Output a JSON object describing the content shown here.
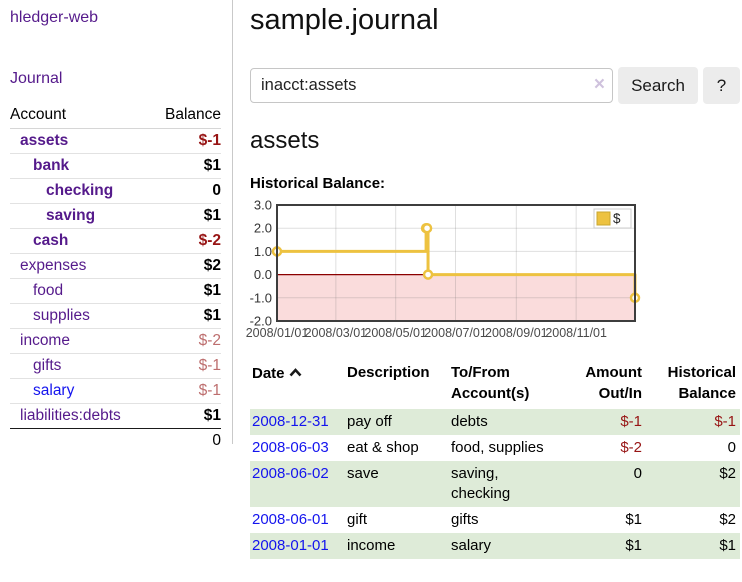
{
  "app": {
    "brand": "hledger-web",
    "nav_journal": "Journal"
  },
  "colors": {
    "accent_purple": "#551a8b",
    "link_blue": "#1414ee",
    "negative_strong": "#971414",
    "negative_muted": "#bd6e6e",
    "row_green": "#deebd8",
    "chart_gold": "#edc240",
    "chart_negative_fill": "#fadcdc",
    "chart_zero_line": "#8b0000"
  },
  "sidebar": {
    "columns": {
      "account": "Account",
      "balance": "Balance"
    },
    "accounts": [
      {
        "name": "assets",
        "balance": "$-1"
      },
      {
        "name": "bank",
        "balance": "$1"
      },
      {
        "name": "checking",
        "balance": "0"
      },
      {
        "name": "saving",
        "balance": "$1"
      },
      {
        "name": "cash",
        "balance": "$-2"
      },
      {
        "name": "expenses",
        "balance": "$2"
      },
      {
        "name": "food",
        "balance": "$1"
      },
      {
        "name": "supplies",
        "balance": "$1"
      },
      {
        "name": "income",
        "balance": "$-2"
      },
      {
        "name": "gifts",
        "balance": "$-1"
      },
      {
        "name": "salary",
        "balance": "$-1"
      },
      {
        "name": "liabilities:debts",
        "balance": "$1"
      }
    ],
    "total": "0"
  },
  "header": {
    "title": "sample.journal"
  },
  "search": {
    "value": "inacct:assets",
    "clear_icon": "×",
    "button_label": "Search",
    "help_label": "?"
  },
  "account_page": {
    "title": "assets",
    "section_label": "Historical Balance:"
  },
  "chart_data": {
    "type": "line",
    "step": true,
    "title": "Historical Balance:",
    "series": [
      {
        "name": "$",
        "color": "#edc240",
        "points": [
          [
            "2008/01/01",
            1
          ],
          [
            "2008/06/01",
            2
          ],
          [
            "2008/06/02",
            2
          ],
          [
            "2008/06/03",
            0
          ],
          [
            "2008/12/31",
            -1
          ]
        ]
      }
    ],
    "x_ticks": [
      "2008/01/01",
      "2008/03/01",
      "2008/05/01",
      "2008/07/01",
      "2008/09/01",
      "2008/11/01"
    ],
    "y_ticks": [
      3,
      2,
      1,
      0,
      -1,
      -2
    ],
    "xlim": [
      "2008/01/01",
      "2008/12/31"
    ],
    "ylim": [
      -2,
      3
    ],
    "grid": true,
    "legend_position": "top-right",
    "negative_region": true
  },
  "register": {
    "columns": {
      "date": "Date",
      "description": "Description",
      "tofrom_l1": "To/From",
      "tofrom_l2": "Account(s)",
      "amount_l1": "Amount",
      "amount_l2": "Out/In",
      "balance_l1": "Historical",
      "balance_l2": "Balance"
    },
    "rows": [
      {
        "date": "2008-12-31",
        "description": "pay off",
        "accounts": "debts",
        "amount": "$-1",
        "balance": "$-1"
      },
      {
        "date": "2008-06-03",
        "description": "eat & shop",
        "accounts": "food, supplies",
        "amount": "$-2",
        "balance": "0"
      },
      {
        "date": "2008-06-02",
        "description": "save",
        "accounts": "saving, checking",
        "amount": "0",
        "balance": "$2"
      },
      {
        "date": "2008-06-01",
        "description": "gift",
        "accounts": "gifts",
        "amount": "$1",
        "balance": "$2"
      },
      {
        "date": "2008-01-01",
        "description": "income",
        "accounts": "salary",
        "amount": "$1",
        "balance": "$1"
      }
    ]
  }
}
